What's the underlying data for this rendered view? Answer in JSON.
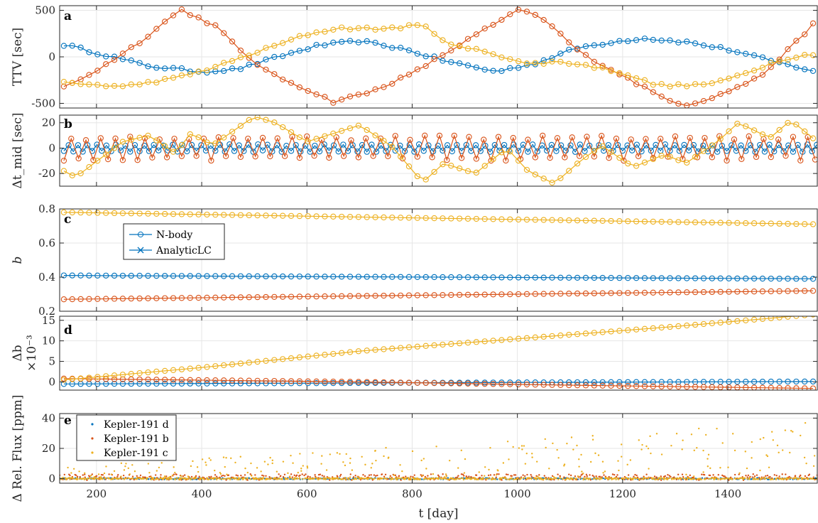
{
  "colors": {
    "blue": "#0072BD",
    "orange": "#D95319",
    "yellow": "#EDB120",
    "grid": "#e6e6e6",
    "frame": "#262626"
  },
  "chart_data": [
    {
      "panel": "a",
      "type": "line",
      "ylabel": "TTV [sec]",
      "xlim": [
        130,
        1570
      ],
      "ylim": [
        -550,
        550
      ],
      "yticks": [
        -500,
        0,
        500
      ],
      "ytick_labels": [
        "-500",
        "0",
        "500"
      ],
      "grid": true,
      "series": [
        {
          "color": "blue",
          "marker": "o",
          "x": [
            140,
            300,
            400,
            470,
            540,
            620,
            700,
            780,
            860,
            960,
            1040,
            1110,
            1180,
            1240,
            1320,
            1400,
            1480,
            1570
          ],
          "y": [
            130,
            -100,
            -160,
            -130,
            -10,
            120,
            170,
            90,
            -40,
            -160,
            -60,
            90,
            160,
            200,
            160,
            80,
            -40,
            -160
          ]
        },
        {
          "color": "orange",
          "marker": "o",
          "x": [
            130,
            200,
            280,
            360,
            430,
            470,
            530,
            600,
            650,
            720,
            800,
            870,
            940,
            1010,
            1060,
            1120,
            1200,
            1270,
            1320,
            1380,
            1460,
            1520,
            1570
          ],
          "y": [
            -350,
            -150,
            150,
            510,
            320,
            80,
            -180,
            -350,
            -480,
            -380,
            -180,
            60,
            300,
            520,
            360,
            40,
            -200,
            -420,
            -520,
            -420,
            -220,
            100,
            400
          ]
        },
        {
          "color": "yellow",
          "marker": "o",
          "x": [
            140,
            250,
            350,
            420,
            500,
            600,
            660,
            740,
            820,
            880,
            940,
            1020,
            1080,
            1140,
            1200,
            1260,
            1320,
            1380,
            1440,
            1500,
            1570
          ],
          "y": [
            -280,
            -320,
            -230,
            -120,
            40,
            240,
            310,
            300,
            340,
            110,
            60,
            -80,
            -50,
            -100,
            -170,
            -300,
            -310,
            -280,
            -160,
            -30,
            40
          ]
        }
      ]
    },
    {
      "panel": "b",
      "type": "line",
      "ylabel": "Δt_mid [sec]",
      "xlim": [
        130,
        1570
      ],
      "ylim": [
        -30,
        26
      ],
      "yticks": [
        -20,
        0,
        20
      ],
      "ytick_labels": [
        "-20",
        "0",
        "20"
      ],
      "grid": true,
      "series": [
        {
          "color": "blue",
          "marker": "o",
          "x": [
            140,
            1570
          ],
          "y": [
            0,
            0
          ],
          "oscillation": 3,
          "period": 18
        },
        {
          "color": "orange",
          "marker": "o",
          "x": [
            140,
            1570
          ],
          "y": [
            0,
            0
          ],
          "oscillation": 10,
          "period": 28
        },
        {
          "color": "yellow",
          "marker": "o",
          "x": [
            140,
            160,
            250,
            300,
            350,
            380,
            420,
            500,
            540,
            600,
            700,
            760,
            820,
            860,
            920,
            980,
            1020,
            1070,
            1120,
            1160,
            1220,
            1280,
            1320,
            1380,
            1420,
            1480,
            1520,
            1570
          ],
          "y": [
            -18,
            -23,
            5,
            10,
            -4,
            12,
            2,
            25,
            20,
            5,
            18,
            2,
            -27,
            -12,
            -20,
            0,
            -18,
            -28,
            -10,
            2,
            -15,
            -5,
            -12,
            5,
            20,
            8,
            22,
            5
          ]
        }
      ]
    },
    {
      "panel": "c",
      "type": "line",
      "ylabel": "b",
      "xlim": [
        130,
        1570
      ],
      "ylim": [
        0.2,
        0.8
      ],
      "yticks": [
        0.2,
        0.4,
        0.6,
        0.8
      ],
      "ytick_labels": [
        "0.2",
        "0.4",
        "0.6",
        "0.8"
      ],
      "grid": true,
      "legend": {
        "entries": [
          "N-body",
          "AnalyticLC"
        ],
        "position": "upper-left"
      },
      "series": [
        {
          "color": "blue",
          "marker": "o",
          "x": [
            140,
            1570
          ],
          "y": [
            0.41,
            0.39
          ]
        },
        {
          "color": "orange",
          "marker": "o",
          "x": [
            140,
            1570
          ],
          "y": [
            0.27,
            0.32
          ]
        },
        {
          "color": "yellow",
          "marker": "o",
          "x": [
            140,
            1570
          ],
          "y": [
            0.78,
            0.71
          ]
        }
      ]
    },
    {
      "panel": "d",
      "type": "line",
      "ylabel": "Δb",
      "scale_label": "×10⁻³",
      "xlim": [
        130,
        1570
      ],
      "ylim": [
        -2,
        16
      ],
      "yticks": [
        0,
        5,
        10,
        15
      ],
      "ytick_labels": [
        "0",
        "5",
        "10",
        "15"
      ],
      "grid": true,
      "series": [
        {
          "color": "blue",
          "marker": "o",
          "x": [
            140,
            1570
          ],
          "y": [
            -0.5,
            0.1
          ]
        },
        {
          "color": "orange",
          "marker": "o",
          "x": [
            140,
            700,
            1100,
            1570
          ],
          "y": [
            0.8,
            0.0,
            -0.8,
            -1.6
          ]
        },
        {
          "color": "yellow",
          "marker": "o",
          "x": [
            140,
            400,
            700,
            1000,
            1300,
            1570
          ],
          "y": [
            0.5,
            3.5,
            7.5,
            10.5,
            13.5,
            16.5
          ]
        }
      ]
    },
    {
      "panel": "e",
      "type": "scatter",
      "ylabel": "Δ Rel. Flux [ppm]",
      "xlabel": "t [day]",
      "xlim": [
        130,
        1570
      ],
      "ylim": [
        -3,
        43
      ],
      "yticks": [
        0,
        20,
        40
      ],
      "ytick_labels": [
        "0",
        "20",
        "40"
      ],
      "grid": true,
      "xticks": [
        200,
        400,
        600,
        800,
        1000,
        1200,
        1400
      ],
      "xtick_labels": [
        "200",
        "400",
        "600",
        "800",
        "1000",
        "1200",
        "1400"
      ],
      "legend": {
        "entries": [
          "Kepler-191 d",
          "Kepler-191 b",
          "Kepler-191 c"
        ],
        "position": "upper-left"
      },
      "series": [
        {
          "name": "Kepler-191 d",
          "color": "blue",
          "y_range": [
            -0.5,
            0.5
          ]
        },
        {
          "name": "Kepler-191 b",
          "color": "orange",
          "y_range": [
            -1,
            3
          ]
        },
        {
          "name": "Kepler-191 c",
          "color": "yellow",
          "y_range": [
            0,
            40
          ]
        }
      ]
    }
  ]
}
